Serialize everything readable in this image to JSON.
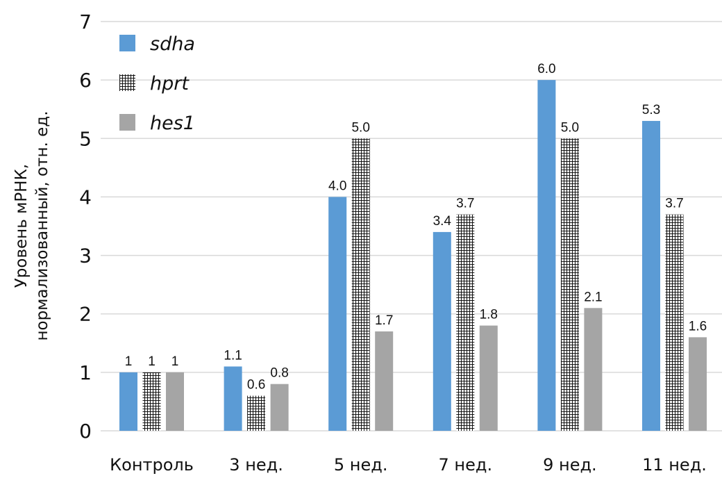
{
  "chart_data": {
    "type": "bar",
    "title": "",
    "xlabel": "",
    "ylabel_lines": [
      "Уровень мРНК,",
      "нормализованный, отн. ед."
    ],
    "ylim": [
      0,
      7
    ],
    "yticks": [
      "0",
      "1",
      "2",
      "3",
      "4",
      "5",
      "6",
      "7"
    ],
    "grid": true,
    "legend_position": "top-left",
    "categories": [
      "Контроль",
      "3 нед.",
      "5 нед.",
      "7 нед.",
      "9 нед.",
      "11 нед."
    ],
    "series": [
      {
        "name": "sdha",
        "color": "#5b9bd5",
        "pattern": "solid",
        "values": [
          1,
          1.1,
          4.0,
          3.4,
          6.0,
          5.3
        ],
        "labels": [
          "1",
          "1.1",
          "4.0",
          "3.4",
          "6.0",
          "5.3"
        ]
      },
      {
        "name": "hprt",
        "color": "#000000",
        "pattern": "grid",
        "values": [
          1,
          0.6,
          5.0,
          3.7,
          5.0,
          3.7
        ],
        "labels": [
          "1",
          "0.6",
          "5.0",
          "3.7",
          "5.0",
          "3.7"
        ]
      },
      {
        "name": "hes1",
        "color": "#a5a5a5",
        "pattern": "solid",
        "values": [
          1,
          0.8,
          1.7,
          1.8,
          2.1,
          1.6
        ],
        "labels": [
          "1",
          "0.8",
          "1.7",
          "1.8",
          "2.1",
          "1.6"
        ]
      }
    ]
  }
}
